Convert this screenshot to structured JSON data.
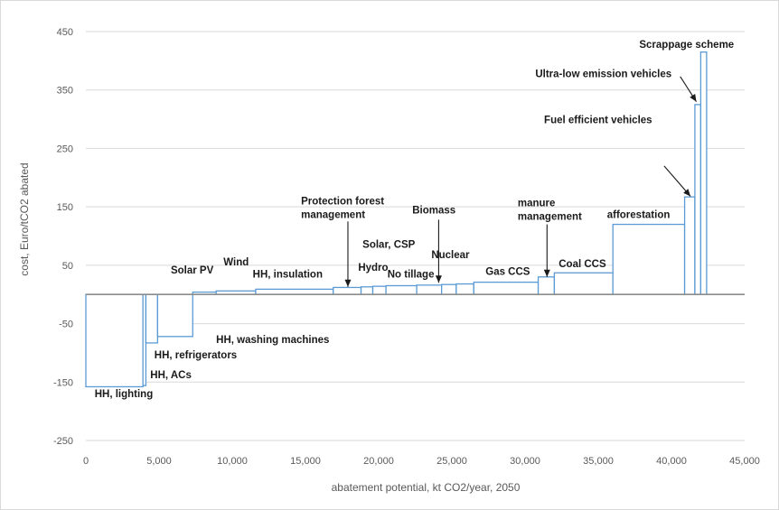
{
  "chart_data": {
    "type": "bar",
    "subtype": "marginal abatement cost curve (variable-width bars)",
    "xlabel": "abatement potential, kt CO2/year, 2050",
    "ylabel": "cost, Euro/tCO2 abated",
    "xlim": [
      0,
      45000
    ],
    "ylim": [
      -250,
      450
    ],
    "x_ticks": [
      0,
      5000,
      10000,
      15000,
      20000,
      25000,
      30000,
      35000,
      40000,
      45000
    ],
    "x_tick_labels": [
      "0",
      "5,000",
      "10,000",
      "15,000",
      "20,000",
      "25,000",
      "30,000",
      "35,000",
      "40,000",
      "45,000"
    ],
    "y_ticks": [
      450,
      350,
      250,
      150,
      50,
      -50,
      -150,
      -250
    ],
    "y_tick_labels": [
      "450",
      "350",
      "250",
      "150",
      "50",
      "-50",
      "-150",
      "-250"
    ],
    "grid": true,
    "legend": "none",
    "colors": {
      "bar_outline": "#5b9bd5",
      "grid": "#d9d9d9",
      "zero_line": "#8c8c8c",
      "text": "#1a1a1a",
      "axis_text": "#595959"
    },
    "bars": [
      {
        "x0": 0,
        "x1": 3900,
        "value": -158
      },
      {
        "x0": 3900,
        "x1": 4100,
        "value": -156
      },
      {
        "x0": 4100,
        "x1": 4900,
        "value": -83
      },
      {
        "x0": 4900,
        "x1": 7300,
        "value": -72
      },
      {
        "x0": 7300,
        "x1": 8900,
        "value": 4
      },
      {
        "x0": 8900,
        "x1": 11600,
        "value": 6
      },
      {
        "x0": 11600,
        "x1": 16900,
        "value": 9
      },
      {
        "x0": 16900,
        "x1": 18800,
        "value": 12
      },
      {
        "x0": 18800,
        "x1": 19600,
        "value": 13
      },
      {
        "x0": 19600,
        "x1": 20500,
        "value": 14
      },
      {
        "x0": 20500,
        "x1": 22600,
        "value": 15
      },
      {
        "x0": 22600,
        "x1": 24300,
        "value": 16
      },
      {
        "x0": 24300,
        "x1": 25300,
        "value": 17
      },
      {
        "x0": 25300,
        "x1": 26500,
        "value": 18
      },
      {
        "x0": 26500,
        "x1": 30900,
        "value": 21
      },
      {
        "x0": 30900,
        "x1": 32000,
        "value": 30
      },
      {
        "x0": 32000,
        "x1": 36000,
        "value": 37
      },
      {
        "x0": 36000,
        "x1": 40900,
        "value": 120
      },
      {
        "x0": 40900,
        "x1": 41600,
        "value": 167
      },
      {
        "x0": 41600,
        "x1": 42000,
        "value": 325
      },
      {
        "x0": 42000,
        "x1": 42400,
        "value": 415
      }
    ],
    "annotations": [
      {
        "text": "HH, lighting",
        "x": 600,
        "y": -170,
        "anchor": "start"
      },
      {
        "text": "HH, ACs",
        "x": 4400,
        "y": -137,
        "anchor": "start"
      },
      {
        "text": "HH, refrigerators",
        "x": 7500,
        "y": -103,
        "anchor": "middle"
      },
      {
        "text": "HH, washing machines",
        "x": 8900,
        "y": -77,
        "anchor": "start"
      },
      {
        "text": "Solar PV",
        "x": 5800,
        "y": 42,
        "anchor": "start"
      },
      {
        "text": "Wind",
        "x": 9400,
        "y": 56,
        "anchor": "start"
      },
      {
        "text": "HH, insulation",
        "x": 11400,
        "y": 35,
        "anchor": "start"
      },
      {
        "text": "Protection forest",
        "x": 14700,
        "y": 160,
        "anchor": "start"
      },
      {
        "text": "management",
        "x": 14700,
        "y": 137,
        "anchor": "start"
      },
      {
        "text": "Solar, CSP",
        "x": 18900,
        "y": 86,
        "anchor": "start"
      },
      {
        "text": "Hydro",
        "x": 18600,
        "y": 47,
        "anchor": "start"
      },
      {
        "text": "No tillage",
        "x": 20600,
        "y": 35,
        "anchor": "start"
      },
      {
        "text": "Biomass",
        "x": 22300,
        "y": 145,
        "anchor": "start"
      },
      {
        "text": "Nuclear",
        "x": 23600,
        "y": 68,
        "anchor": "start"
      },
      {
        "text": "Gas CCS",
        "x": 27300,
        "y": 40,
        "anchor": "start"
      },
      {
        "text": "manure",
        "x": 29500,
        "y": 157,
        "anchor": "start"
      },
      {
        "text": "management",
        "x": 29500,
        "y": 134,
        "anchor": "start"
      },
      {
        "text": "Coal CCS",
        "x": 32300,
        "y": 53,
        "anchor": "start"
      },
      {
        "text": "afforestation",
        "x": 35600,
        "y": 137,
        "anchor": "start"
      },
      {
        "text": "Fuel efficient vehicles",
        "x": 31300,
        "y": 299,
        "anchor": "start"
      },
      {
        "text": "Ultra-low emission vehicles",
        "x": 30700,
        "y": 378,
        "anchor": "start"
      },
      {
        "text": "Scrappage scheme",
        "x": 37800,
        "y": 428,
        "anchor": "start"
      }
    ],
    "arrows": [
      {
        "from": [
          17900,
          125
        ],
        "to": [
          17900,
          13
        ]
      },
      {
        "from": [
          24100,
          128
        ],
        "to": [
          24100,
          20
        ]
      },
      {
        "from": [
          31500,
          120
        ],
        "to": [
          31500,
          30
        ]
      },
      {
        "from": [
          39500,
          220
        ],
        "to": [
          41300,
          168
        ]
      },
      {
        "from": [
          40600,
          373
        ],
        "to": [
          41700,
          330
        ]
      }
    ]
  }
}
